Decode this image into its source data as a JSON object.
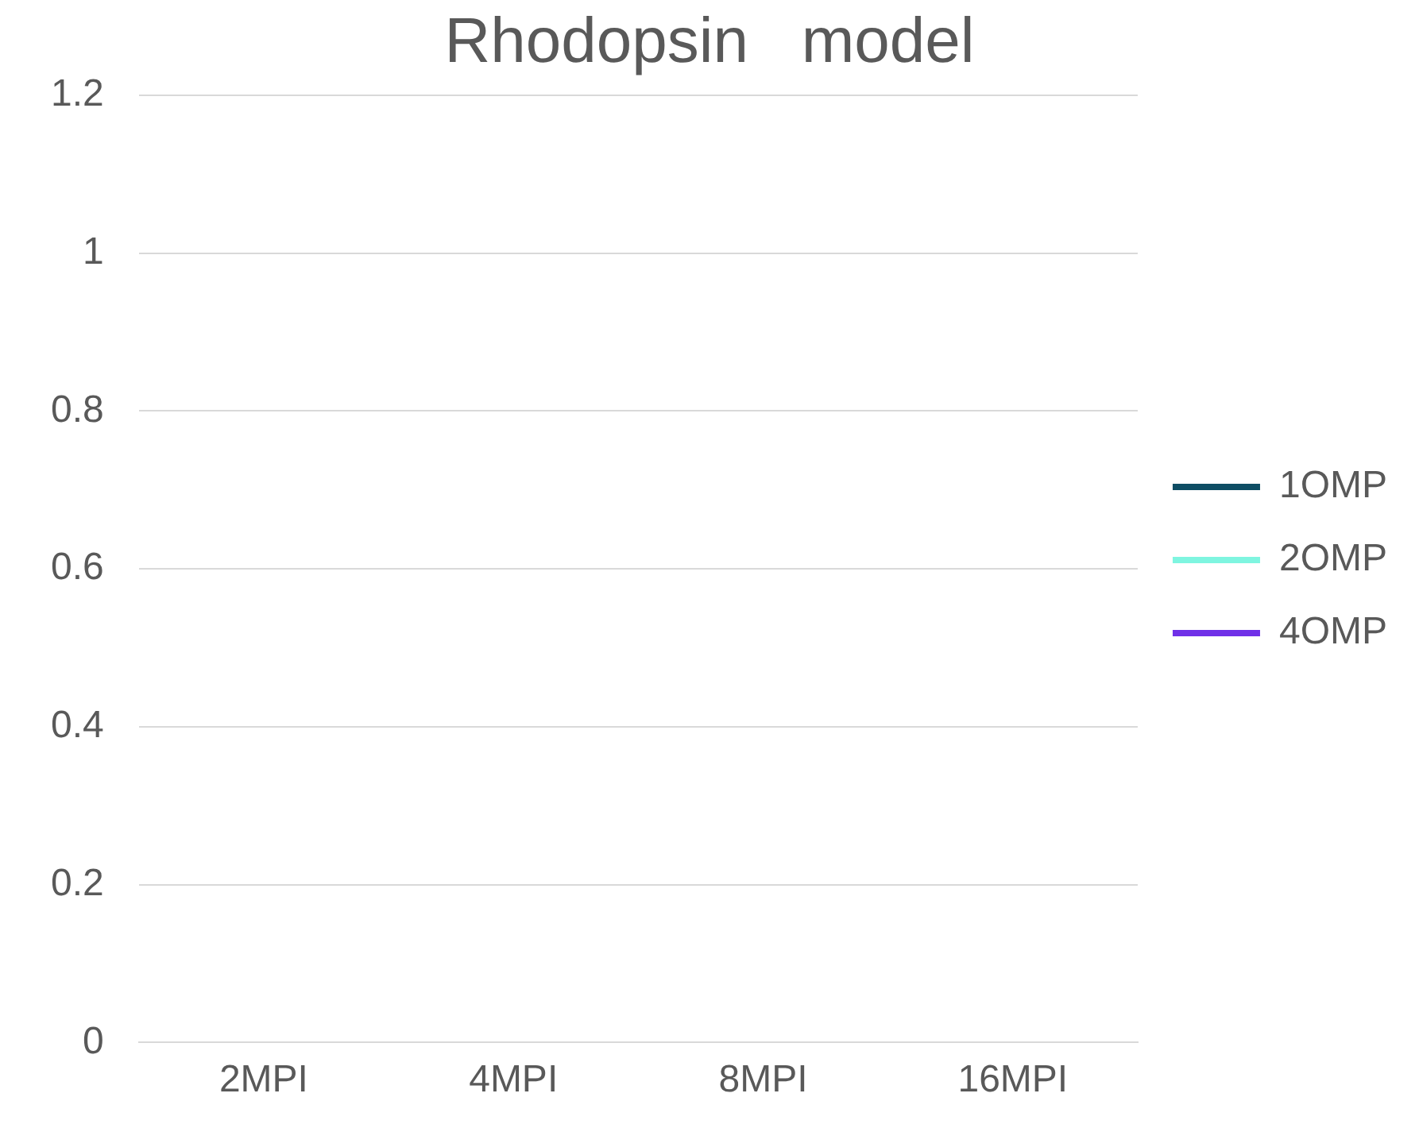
{
  "chart_data": {
    "type": "line",
    "title": "Rhodopsin   model",
    "categories": [
      "2MPI",
      "4MPI",
      "8MPI",
      "16MPI"
    ],
    "series": [
      {
        "name": "1OMP",
        "color": "#0e4d64",
        "values": [
          null,
          null,
          null,
          null
        ]
      },
      {
        "name": "2OMP",
        "color": "#7ff5e0",
        "values": [
          null,
          null,
          null,
          null
        ]
      },
      {
        "name": "4OMP",
        "color": "#7030e8",
        "values": [
          null,
          null,
          null,
          null
        ]
      }
    ],
    "ylim": [
      0,
      1.2
    ],
    "yticks": [
      0,
      0.2,
      0.4,
      0.6,
      0.8,
      1,
      1.2
    ],
    "grid": "y",
    "legend": "right"
  }
}
